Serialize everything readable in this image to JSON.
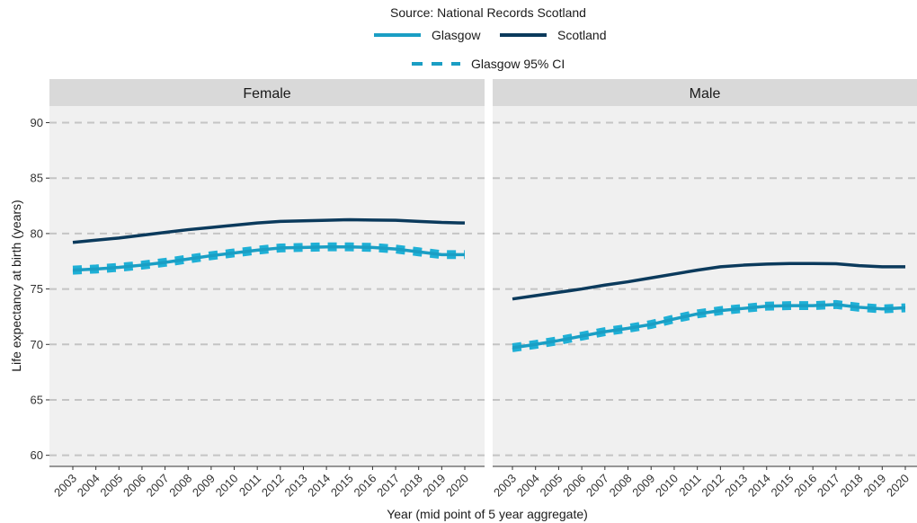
{
  "chart_data": {
    "type": "line",
    "subtitle": "Source: National Records Scotland",
    "xlabel": "Year (mid point of 5 year aggregate)",
    "ylabel": "Life expectancy at birth (years)",
    "ylim": [
      59,
      91.5
    ],
    "yticks": [
      60,
      65,
      70,
      75,
      80,
      85,
      90
    ],
    "grid": true,
    "legend_position": "top",
    "legend": [
      {
        "name": "Glasgow",
        "color": "#1a9ec4",
        "style": "solid"
      },
      {
        "name": "Scotland",
        "color": "#0b3a5c",
        "style": "solid"
      },
      {
        "name": "Glasgow 95% CI",
        "color": "#1a9ec4",
        "style": "dashed"
      }
    ],
    "x": [
      "2003",
      "2004",
      "2005",
      "2006",
      "2007",
      "2008",
      "2009",
      "2010",
      "2011",
      "2012",
      "2013",
      "2014",
      "2015",
      "2016",
      "2017",
      "2018",
      "2019",
      "2020"
    ],
    "panels": [
      {
        "title": "Female",
        "series": [
          {
            "name": "Scotland",
            "values": [
              79.2,
              79.4,
              79.6,
              79.85,
              80.1,
              80.35,
              80.55,
              80.75,
              80.95,
              81.1,
              81.15,
              81.2,
              81.25,
              81.22,
              81.2,
              81.1,
              81.0,
              80.95
            ]
          },
          {
            "name": "Glasgow",
            "values": [
              76.7,
              76.8,
              76.95,
              77.15,
              77.4,
              77.7,
              78.0,
              78.25,
              78.5,
              78.7,
              78.75,
              78.8,
              78.8,
              78.75,
              78.6,
              78.35,
              78.1,
              78.1
            ]
          },
          {
            "name": "Glasgow 95% CI lower",
            "values": [
              76.5,
              76.6,
              76.75,
              76.95,
              77.2,
              77.5,
              77.8,
              78.05,
              78.3,
              78.5,
              78.55,
              78.6,
              78.6,
              78.55,
              78.4,
              78.15,
              77.9,
              77.9
            ]
          },
          {
            "name": "Glasgow 95% CI upper",
            "values": [
              76.9,
              77.0,
              77.15,
              77.35,
              77.6,
              77.9,
              78.2,
              78.45,
              78.7,
              78.9,
              78.95,
              79.0,
              79.0,
              78.95,
              78.8,
              78.55,
              78.3,
              78.3
            ]
          }
        ]
      },
      {
        "title": "Male",
        "series": [
          {
            "name": "Scotland",
            "values": [
              74.1,
              74.4,
              74.7,
              75.0,
              75.35,
              75.65,
              76.0,
              76.35,
              76.7,
              77.0,
              77.15,
              77.25,
              77.3,
              77.3,
              77.28,
              77.1,
              77.0,
              77.0
            ]
          },
          {
            "name": "Glasgow",
            "values": [
              69.7,
              70.0,
              70.35,
              70.75,
              71.15,
              71.45,
              71.8,
              72.3,
              72.75,
              73.05,
              73.25,
              73.45,
              73.5,
              73.5,
              73.6,
              73.35,
              73.2,
              73.3
            ]
          },
          {
            "name": "Glasgow 95% CI lower",
            "values": [
              69.5,
              69.8,
              70.15,
              70.55,
              70.95,
              71.25,
              71.6,
              72.1,
              72.55,
              72.85,
              73.05,
              73.25,
              73.3,
              73.3,
              73.4,
              73.15,
              73.0,
              73.1
            ]
          },
          {
            "name": "Glasgow 95% CI upper",
            "values": [
              69.9,
              70.2,
              70.55,
              70.95,
              71.35,
              71.65,
              72.0,
              72.5,
              72.95,
              73.25,
              73.45,
              73.65,
              73.7,
              73.7,
              73.8,
              73.55,
              73.4,
              73.5
            ]
          }
        ]
      }
    ]
  }
}
